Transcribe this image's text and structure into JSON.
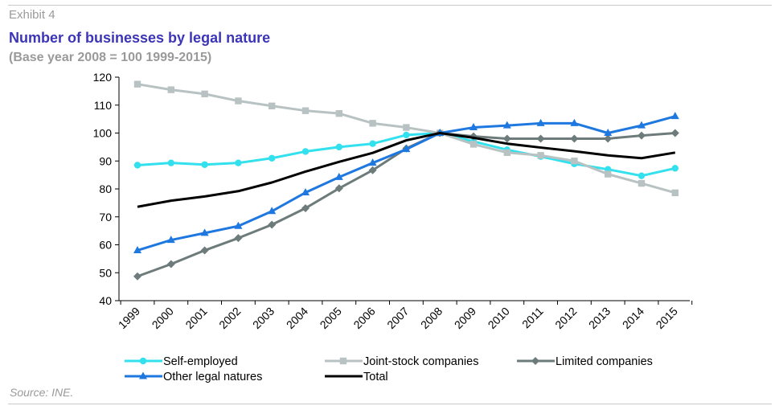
{
  "header": {
    "exhibit": "Exhibit 4",
    "title": "Number of businesses by legal nature",
    "subtitle": "(Base year 2008 = 100 1999-2015)"
  },
  "footer": {
    "source": "Source: INE."
  },
  "chart_data": {
    "type": "line",
    "title": "Number of businesses by legal nature",
    "subtitle": "(Base year 2008 = 100 1999-2015)",
    "xlabel": "",
    "ylabel": "",
    "x": [
      "1999",
      "2000",
      "2001",
      "2002",
      "2003",
      "2004",
      "2005",
      "2006",
      "2007",
      "2008",
      "2009",
      "2010",
      "2011",
      "2012",
      "2013",
      "2014",
      "2015"
    ],
    "ylim": [
      40,
      120
    ],
    "yticks": [
      40,
      50,
      60,
      70,
      80,
      90,
      100,
      110,
      120
    ],
    "grid": false,
    "legend_position": "bottom",
    "series": [
      {
        "name": "Self-employed",
        "color": "#33e0ee",
        "marker": "circle",
        "values": [
          88.5,
          89.3,
          88.7,
          89.3,
          91.0,
          93.4,
          95.0,
          96.2,
          99.3,
          100,
          97.0,
          94.0,
          91.6,
          89.0,
          87.0,
          84.7,
          87.4
        ]
      },
      {
        "name": "Joint-stock companies",
        "color": "#b8c2c2",
        "marker": "square",
        "values": [
          117.5,
          115.5,
          114.0,
          111.5,
          109.7,
          108.0,
          107.0,
          103.5,
          102.0,
          100,
          96.0,
          93.0,
          92.0,
          90.0,
          85.3,
          82.0,
          78.6
        ]
      },
      {
        "name": "Limited companies",
        "color": "#6d7b7b",
        "marker": "diamond",
        "values": [
          48.7,
          53.1,
          58.0,
          62.4,
          67.2,
          73.1,
          80.2,
          86.7,
          94.5,
          100,
          98.8,
          98.0,
          98.0,
          98.0,
          98.0,
          99.1,
          100.0
        ]
      },
      {
        "name": "Other legal natures",
        "color": "#1e78e0",
        "marker": "triangle",
        "values": [
          58.0,
          61.7,
          64.2,
          66.7,
          72.0,
          78.7,
          84.2,
          89.3,
          94.2,
          100,
          102.0,
          102.7,
          103.5,
          103.5,
          100.0,
          102.7,
          106.0
        ]
      },
      {
        "name": "Total",
        "color": "#000000",
        "marker": "none",
        "values": [
          73.6,
          75.8,
          77.3,
          79.2,
          82.3,
          86.2,
          89.7,
          92.9,
          97.4,
          100,
          98.3,
          96.2,
          94.8,
          93.5,
          92.0,
          91.0,
          93.0
        ]
      }
    ]
  }
}
